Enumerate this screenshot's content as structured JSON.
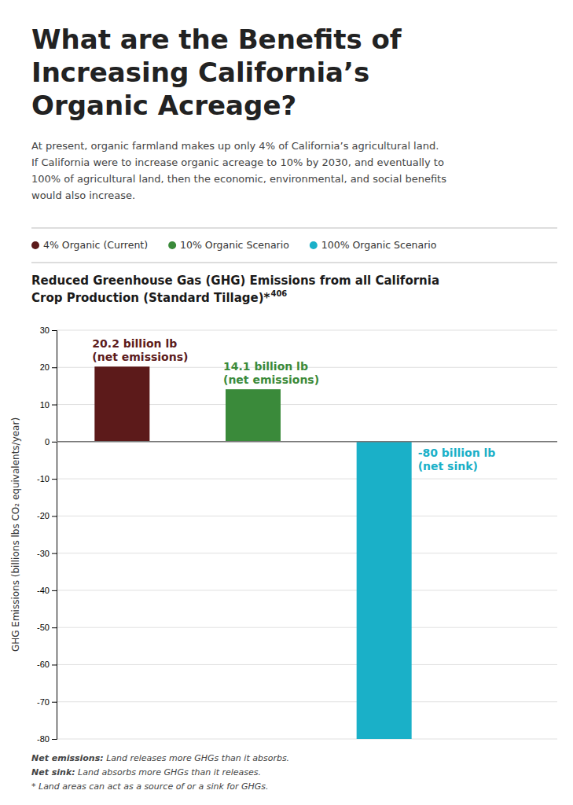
{
  "title": [
    "What are the Benefits of",
    "Increasing California’s",
    "Organic Acreage?"
  ],
  "body": [
    "At present, organic farmland makes up only 4% of California’s agricultural land.",
    "If California were to increase organic acreage to 10% by 2030, and eventually to",
    "100% of agricultural land, then the economic, environmental, and social benefits",
    "would also increase."
  ],
  "chart_data": {
    "type": "bar",
    "title": [
      "Reduced Greenhouse Gas (GHG) Emissions from all California",
      "Crop Production (Standard Tillage)*"
    ],
    "title_superscript": "406",
    "categories": [
      "4% Organic (Current)",
      "10% Organic Scenario",
      "100% Organic Scenario"
    ],
    "values": [
      20.2,
      14.1,
      -80.0
    ],
    "colors": [
      "#5c1a1a",
      "#3a8a3a",
      "#1ab0c8"
    ],
    "value_labels": [
      "20.2 billion lb\n(net emissions)",
      "14.1 billion lb\n(net emissions)",
      "-80 billion lb\n(net sink)"
    ],
    "data_labels": true,
    "ylabel": "GHG Emissions (billions lbs CO₂ equivalents/year)",
    "ylim": [
      -80,
      30
    ],
    "yticks": [
      -80,
      -70,
      -60,
      -50,
      -40,
      -30,
      -20,
      -10,
      0,
      10,
      20,
      30
    ],
    "grid": true,
    "legend": "top",
    "tick_labels": "y",
    "annotations": [
      {
        "bold": "Net emissions:",
        "text": " Land releases more GHGs than it absorbs."
      },
      {
        "bold": "Net sink:",
        "text": " Land absorbs more GHGs than it releases."
      },
      {
        "text": "* Land areas can act as a source of or a sink for GHGs."
      }
    ]
  }
}
